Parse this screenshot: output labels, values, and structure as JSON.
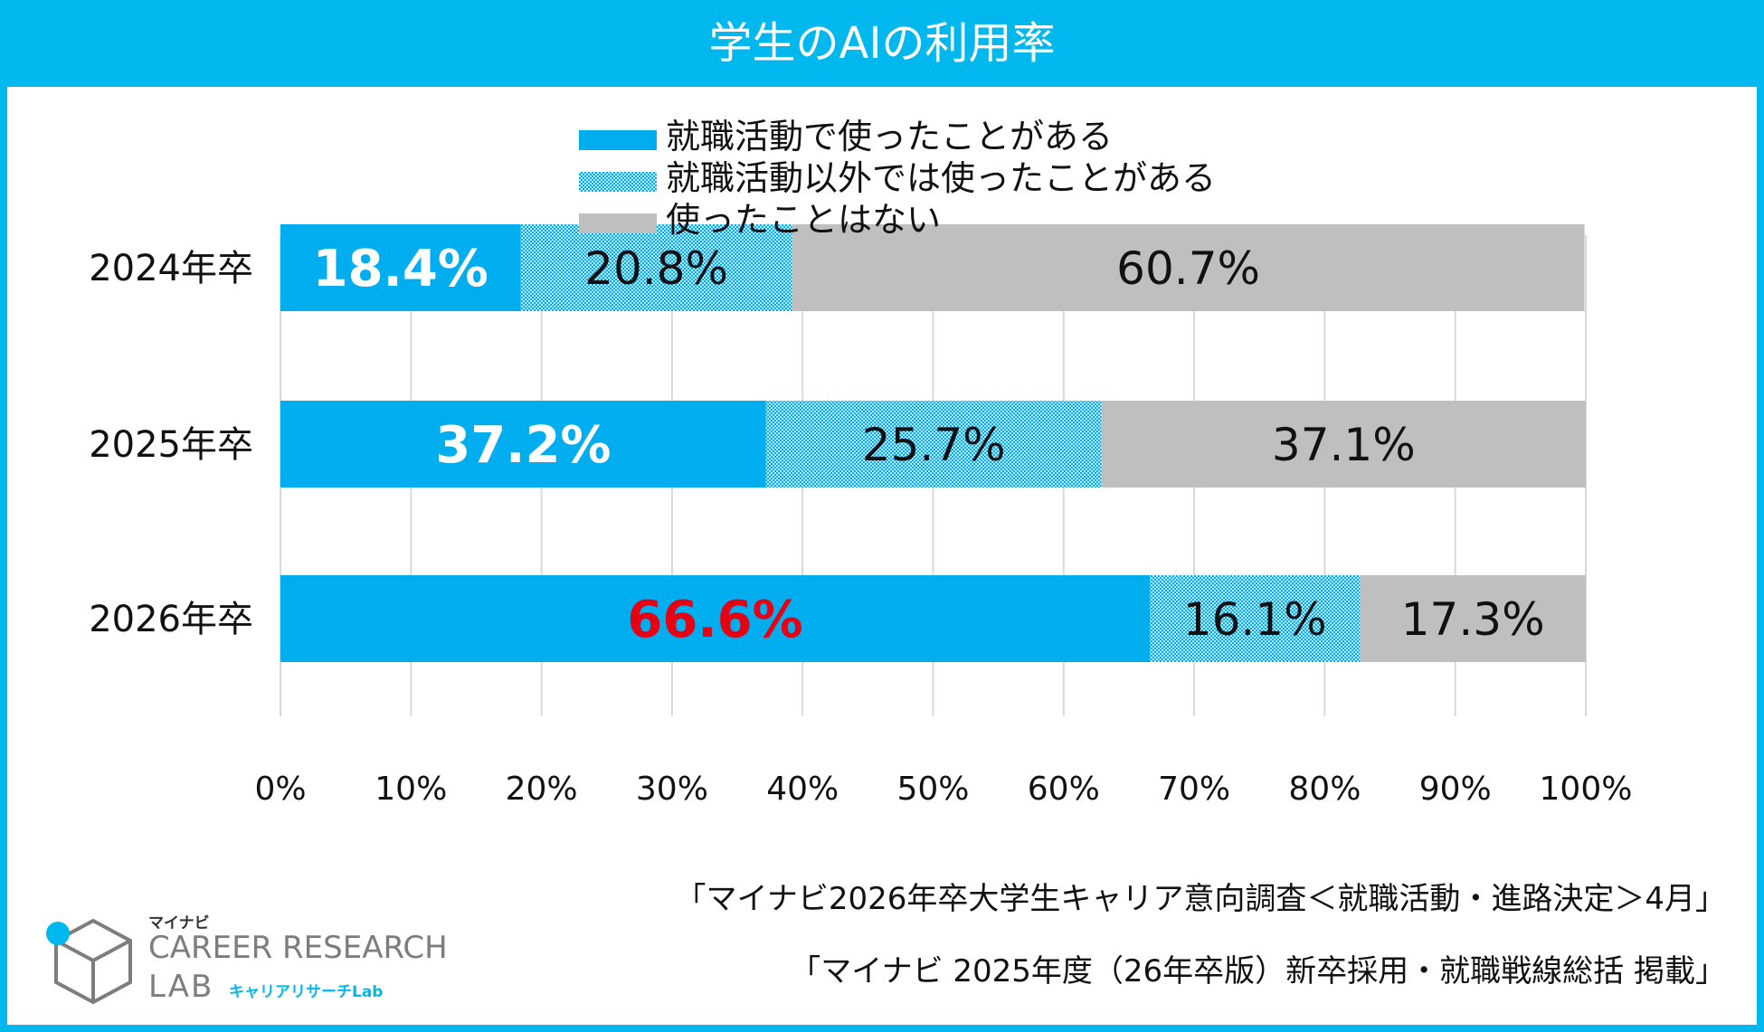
{
  "header": {
    "title": "学生のAIの利用率"
  },
  "chart_data": {
    "type": "bar",
    "orientation": "horizontal",
    "stacked": true,
    "categories": [
      "2024年卒",
      "2025年卒",
      "2026年卒"
    ],
    "series": [
      {
        "name": "就職活動で使ったことがある",
        "values": [
          18.4,
          37.2,
          66.6
        ],
        "labels": [
          "18.4%",
          "37.2%",
          "66.6%"
        ],
        "color": "#00aeef",
        "pattern": "solid"
      },
      {
        "name": "就職活動以外では使ったことがある",
        "values": [
          20.8,
          25.7,
          16.1
        ],
        "labels": [
          "20.8%",
          "25.7%",
          "16.1%"
        ],
        "color": "#00aeef",
        "pattern": "dotted"
      },
      {
        "name": "使ったことはない",
        "values": [
          60.7,
          37.1,
          17.3
        ],
        "labels": [
          "60.7%",
          "37.1%",
          "17.3%"
        ],
        "color": "#bfbfbf",
        "pattern": "solid"
      }
    ],
    "xlim": [
      0,
      100
    ],
    "x_ticks": [
      "0%",
      "10%",
      "20%",
      "30%",
      "40%",
      "50%",
      "60%",
      "70%",
      "80%",
      "90%",
      "100%"
    ],
    "grid": "vertical",
    "legend_position": "top",
    "highlight_label_color": "#e60012"
  },
  "sources": [
    "「マイナビ2026年卒大学生キャリア意向調査＜就職活動・進路決定＞4月」",
    "「マイナビ 2025年度（26年卒版）新卒採用・就職戦線総括 掲載」"
  ],
  "logo": {
    "brand": "マイナビ",
    "line1": "CAREER RESEARCH",
    "line2": "LAB",
    "ja": "キャリアリサーチLab"
  },
  "colors": {
    "frame": "#00b7ee",
    "bar_blue": "#00aeef",
    "bar_gray": "#bfbfbf",
    "highlight": "#e60012"
  }
}
